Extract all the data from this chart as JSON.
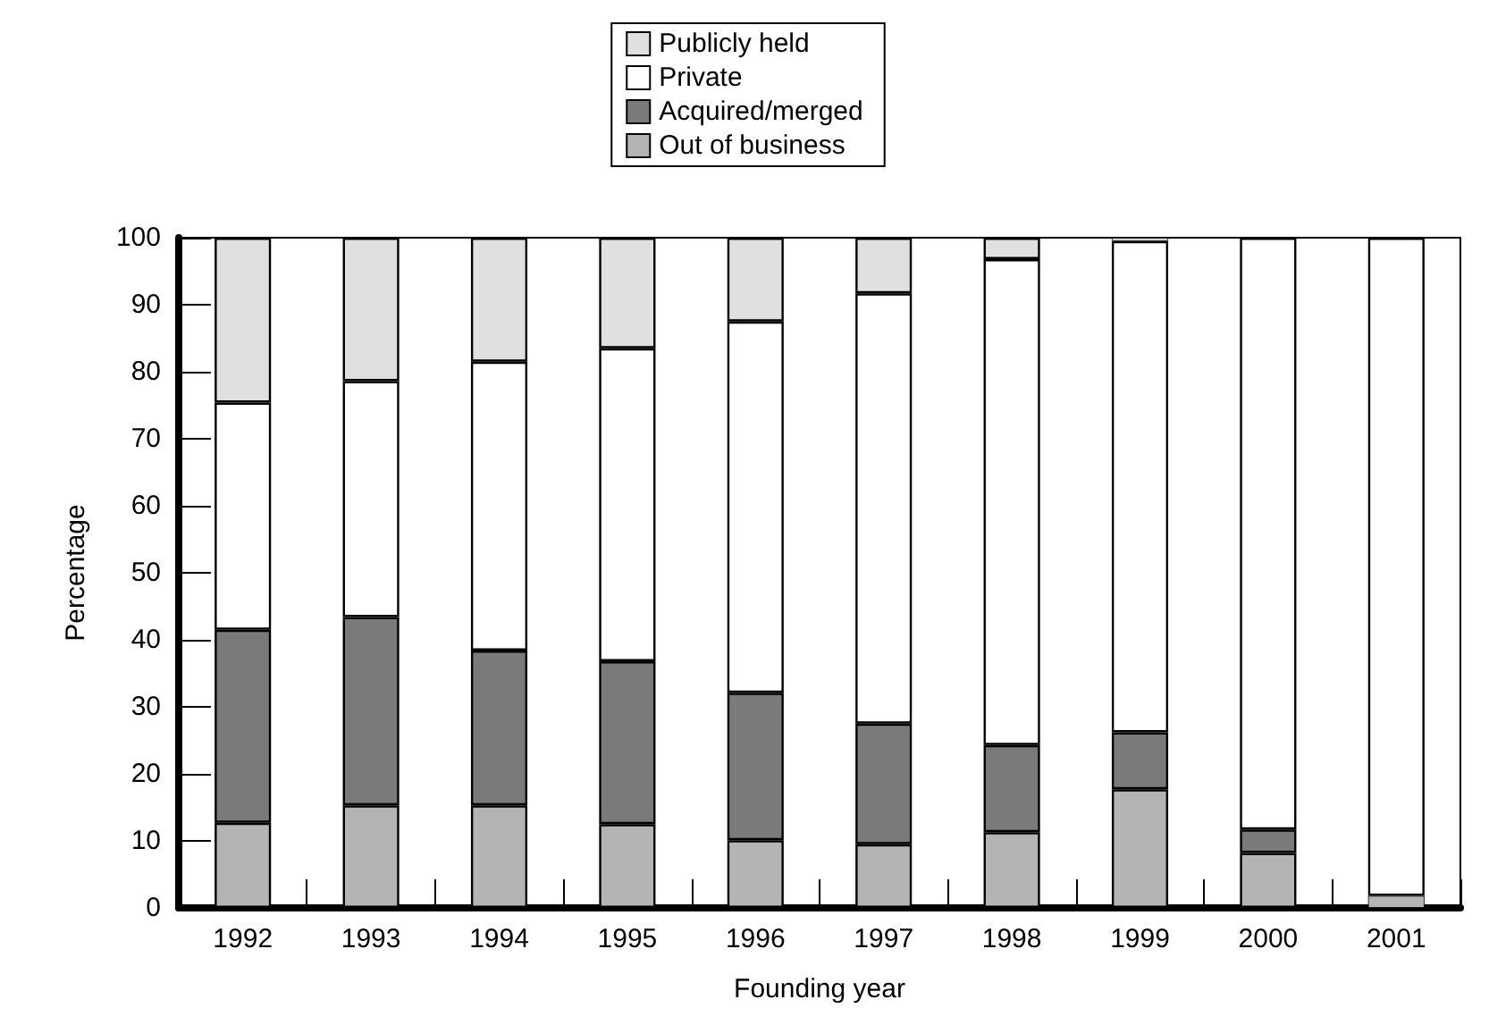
{
  "chart_data": {
    "type": "bar",
    "stacked": true,
    "xlabel": "Founding year",
    "ylabel": "Percentage",
    "categories": [
      "1992",
      "1993",
      "1994",
      "1995",
      "1996",
      "1997",
      "1998",
      "1999",
      "2000",
      "2001"
    ],
    "series": [
      {
        "name": "Out of business",
        "color": "#b4b4b4",
        "values": [
          12.7,
          15.3,
          15.3,
          12.5,
          10.1,
          9.5,
          11.3,
          17.7,
          8.2,
          1.8
        ]
      },
      {
        "name": "Acquired/merged",
        "color": "#7a7a7a",
        "values": [
          28.8,
          28.1,
          23.1,
          24.3,
          22.0,
          18.0,
          13.0,
          8.5,
          3.5,
          0
        ]
      },
      {
        "name": "Private",
        "color": "#ffffff",
        "values": [
          33.9,
          35.2,
          43.1,
          46.7,
          55.4,
          64.2,
          72.5,
          73.3,
          88.3,
          98.2
        ]
      },
      {
        "name": "Publicly held",
        "color": "#e0e0e0",
        "values": [
          24.6,
          21.4,
          18.5,
          16.5,
          12.5,
          8.3,
          3.2,
          0.5,
          0,
          0
        ]
      }
    ],
    "ylim": [
      0,
      100
    ],
    "yticks": [
      0,
      10,
      20,
      30,
      40,
      50,
      60,
      70,
      80,
      90,
      100
    ],
    "grid": false,
    "legend": "top"
  }
}
